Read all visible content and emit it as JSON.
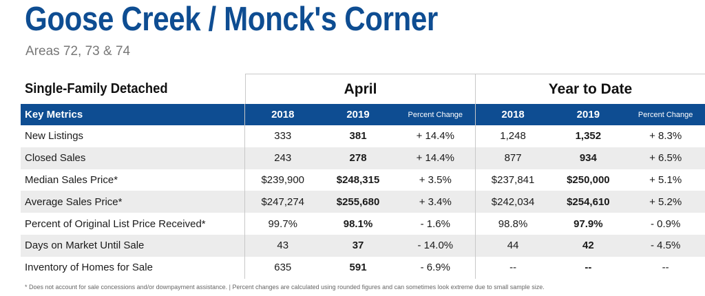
{
  "header": {
    "title": "Goose Creek / Monck's Corner",
    "subtitle": "Areas 72, 73 & 74"
  },
  "table": {
    "section_title": "Single-Family Detached",
    "groups": [
      "April",
      "Year to Date"
    ],
    "columns": {
      "label": "Key Metrics",
      "year1": "2018",
      "year2": "2019",
      "pct": "Percent Change"
    },
    "rows": [
      {
        "label": "New Listings",
        "apr_2018": "333",
        "apr_2019": "381",
        "apr_pct": "+ 14.4%",
        "ytd_2018": "1,248",
        "ytd_2019": "1,352",
        "ytd_pct": "+ 8.3%"
      },
      {
        "label": "Closed Sales",
        "apr_2018": "243",
        "apr_2019": "278",
        "apr_pct": "+ 14.4%",
        "ytd_2018": "877",
        "ytd_2019": "934",
        "ytd_pct": "+ 6.5%"
      },
      {
        "label": "Median Sales Price*",
        "apr_2018": "$239,900",
        "apr_2019": "$248,315",
        "apr_pct": "+ 3.5%",
        "ytd_2018": "$237,841",
        "ytd_2019": "$250,000",
        "ytd_pct": "+ 5.1%"
      },
      {
        "label": "Average Sales Price*",
        "apr_2018": "$247,274",
        "apr_2019": "$255,680",
        "apr_pct": "+ 3.4%",
        "ytd_2018": "$242,034",
        "ytd_2019": "$254,610",
        "ytd_pct": "+ 5.2%"
      },
      {
        "label": "Percent of Original List Price Received*",
        "apr_2018": "99.7%",
        "apr_2019": "98.1%",
        "apr_pct": "- 1.6%",
        "ytd_2018": "98.8%",
        "ytd_2019": "97.9%",
        "ytd_pct": "- 0.9%"
      },
      {
        "label": "Days on Market Until Sale",
        "apr_2018": "43",
        "apr_2019": "37",
        "apr_pct": "- 14.0%",
        "ytd_2018": "44",
        "ytd_2019": "42",
        "ytd_pct": "- 4.5%"
      },
      {
        "label": "Inventory of Homes for Sale",
        "apr_2018": "635",
        "apr_2019": "591",
        "apr_pct": "- 6.9%",
        "ytd_2018": "--",
        "ytd_2019": "--",
        "ytd_pct": "--"
      }
    ]
  },
  "footnote": "* Does not account for sale concessions and/or downpayment assistance.  |  Percent changes are calculated using rounded figures and can sometimes look extreme due to small sample size.",
  "colors": {
    "brand_blue": "#0e4d92",
    "row_shade": "#ececec"
  }
}
